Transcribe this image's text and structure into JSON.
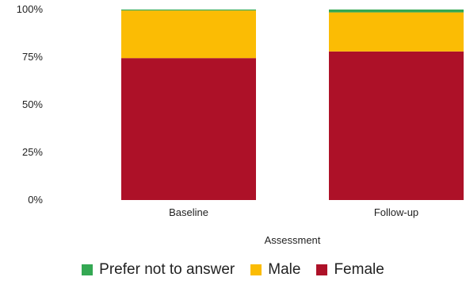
{
  "chart_data": {
    "type": "bar",
    "stacked": true,
    "categories": [
      "Baseline",
      "Follow-up"
    ],
    "series": [
      {
        "name": "Female",
        "color": "#ad1128",
        "values": [
          74.5,
          78
        ]
      },
      {
        "name": "Male",
        "color": "#fbbc04",
        "values": [
          25,
          20.5
        ]
      },
      {
        "name": "Prefer not to answer",
        "color": "#34a853",
        "values": [
          0.5,
          1.5
        ]
      }
    ],
    "y_ticks": [
      "0%",
      "25%",
      "50%",
      "75%",
      "100%"
    ],
    "ylim": [
      0,
      100
    ],
    "xlabel": "Assessment",
    "ylabel": "",
    "legend_order": [
      "Prefer not to answer",
      "Male",
      "Female"
    ],
    "legend_position": "bottom",
    "grid": false
  }
}
